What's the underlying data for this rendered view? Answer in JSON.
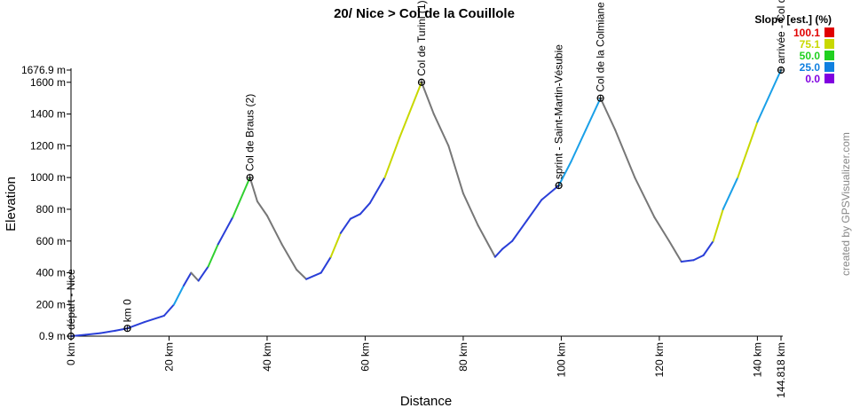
{
  "chart_data": {
    "type": "line",
    "title": "20/ Nice > Col de la Couillole",
    "xlabel": "Distance",
    "ylabel": "Elevation",
    "xlim": [
      0,
      144.818
    ],
    "ylim": [
      0.9,
      1676.9
    ],
    "x_ticks": [
      0,
      20,
      40,
      60,
      80,
      100,
      120,
      140,
      144.818
    ],
    "x_tick_labels": [
      "0 km",
      "20 km",
      "40 km",
      "60 km",
      "80 km",
      "100 km",
      "120 km",
      "140 km",
      "144.818 km"
    ],
    "y_ticks": [
      0.9,
      200,
      400,
      600,
      800,
      1000,
      1200,
      1400,
      1600,
      1676.9
    ],
    "y_tick_labels": [
      "0.9 m",
      "200 m",
      "400 m",
      "600 m",
      "800 m",
      "1000 m",
      "1200 m",
      "1400 m",
      "1600 m",
      "1676.9 m"
    ],
    "grid": false,
    "legend": {
      "title": "Slope [est.] (%)",
      "placement": "top-right",
      "entries": [
        {
          "label": "100.1",
          "color": "#e00000"
        },
        {
          "label": "75.1",
          "color": "#c8d800"
        },
        {
          "label": "50.0",
          "color": "#20d020"
        },
        {
          "label": "25.0",
          "color": "#1080e0"
        },
        {
          "label": "0.0",
          "color": "#8000e0"
        }
      ]
    },
    "series": [
      {
        "x": [
          0,
          3,
          6,
          9,
          11.5,
          15,
          19,
          21,
          23,
          24.5,
          26,
          28,
          30,
          33,
          36.5,
          38,
          40,
          43,
          46,
          48,
          51,
          53,
          55,
          57,
          59,
          61,
          64,
          67,
          71.5,
          74,
          77,
          80,
          83,
          86.5,
          88,
          90,
          93,
          96,
          99.5,
          102,
          105,
          108,
          111,
          115,
          119,
          122,
          124.5,
          127,
          129,
          131,
          133,
          136,
          140,
          144.818
        ],
        "y": [
          0.9,
          10,
          20,
          35,
          50,
          90,
          130,
          200,
          320,
          400,
          350,
          440,
          580,
          750,
          1000,
          850,
          760,
          580,
          420,
          360,
          400,
          500,
          650,
          740,
          770,
          840,
          1000,
          1250,
          1600,
          1400,
          1200,
          900,
          700,
          500,
          550,
          600,
          730,
          860,
          950,
          1100,
          1300,
          1500,
          1300,
          1000,
          750,
          600,
          470,
          480,
          510,
          600,
          800,
          1000,
          1350,
          1676.9
        ]
      }
    ],
    "slope_colors": {
      "climb": "#2a3fd8",
      "steep": "#1aa0e8",
      "very_steep": "#30d030",
      "max": "#c8d800",
      "descent": "#777777"
    },
    "waypoints": [
      {
        "x": 0,
        "y": 0.9,
        "label": "départ - Nice"
      },
      {
        "x": 11.5,
        "y": 50,
        "label": "km 0"
      },
      {
        "x": 36.5,
        "y": 1000,
        "label": "Col de Braus (2)"
      },
      {
        "x": 71.5,
        "y": 1600,
        "label": "Col de Turini (1)"
      },
      {
        "x": 99.5,
        "y": 950,
        "label": "sprint - Saint-Martin-Vésubie"
      },
      {
        "x": 108,
        "y": 1500,
        "label": "Col de la Colmiane"
      },
      {
        "x": 144.818,
        "y": 1676.9,
        "label": "arrivée - Col de la Couillole"
      }
    ]
  },
  "credit": "created by GPSVisualizer.com"
}
